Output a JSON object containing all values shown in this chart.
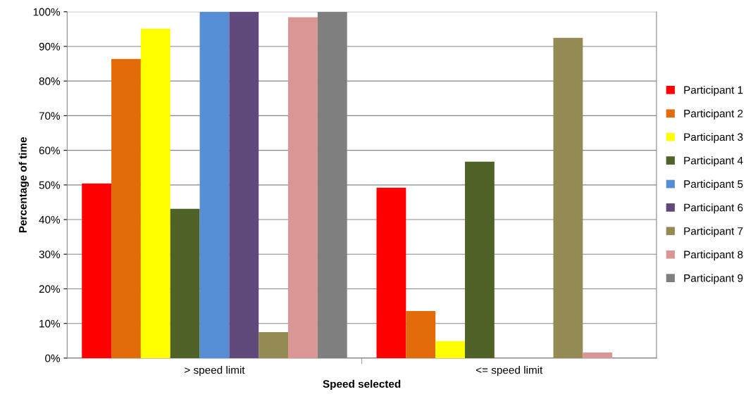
{
  "chart_data": {
    "type": "bar",
    "xlabel": "Speed selected",
    "ylabel": "Percentage of time",
    "categories": [
      "> speed limit",
      "<= speed limit"
    ],
    "series": [
      {
        "name": "Participant 1",
        "color": "#ff0000",
        "values": [
          50.4,
          49.2
        ]
      },
      {
        "name": "Participant 2",
        "color": "#e36c0a",
        "values": [
          86.4,
          13.6
        ]
      },
      {
        "name": "Participant 3",
        "color": "#ffff00",
        "values": [
          95.1,
          4.9
        ]
      },
      {
        "name": "Participant 4",
        "color": "#4f6228",
        "values": [
          43.1,
          56.7
        ]
      },
      {
        "name": "Participant 5",
        "color": "#558ed5",
        "values": [
          100,
          0
        ]
      },
      {
        "name": "Participant 6",
        "color": "#604a7b",
        "values": [
          100,
          0
        ]
      },
      {
        "name": "Participant 7",
        "color": "#948a54",
        "values": [
          7.5,
          92.5
        ]
      },
      {
        "name": "Participant 8",
        "color": "#d99694",
        "values": [
          98.4,
          1.6
        ]
      },
      {
        "name": "Participant 9",
        "color": "#7f7f7f",
        "values": [
          100,
          0
        ]
      }
    ],
    "ylim": [
      0,
      100
    ],
    "yticks": [
      {
        "value": 0,
        "label": "0%"
      },
      {
        "value": 10,
        "label": "10%"
      },
      {
        "value": 20,
        "label": "20%"
      },
      {
        "value": 30,
        "label": "30%"
      },
      {
        "value": 40,
        "label": "40%"
      },
      {
        "value": 50,
        "label": "50%"
      },
      {
        "value": 60,
        "label": "60%"
      },
      {
        "value": 70,
        "label": "70%"
      },
      {
        "value": 80,
        "label": "80%"
      },
      {
        "value": 90,
        "label": "90%"
      },
      {
        "value": 100,
        "label": "100%"
      }
    ],
    "grid": "y",
    "legend": "right"
  }
}
